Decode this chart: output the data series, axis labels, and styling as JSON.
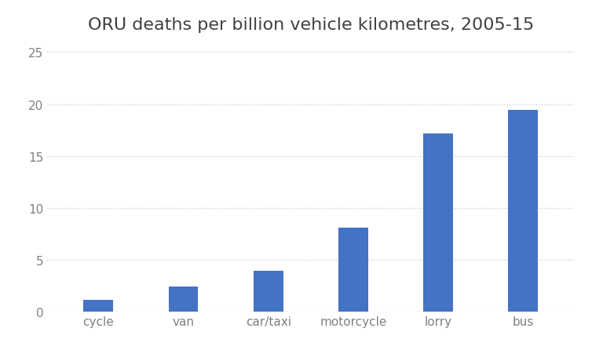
{
  "title": "ORU deaths per billion vehicle kilometres, 2005-15",
  "categories": [
    "cycle",
    "van",
    "car/taxi",
    "motorcycle",
    "lorry",
    "bus"
  ],
  "values": [
    1.1,
    2.4,
    3.9,
    8.1,
    17.2,
    19.4
  ],
  "bar_color": "#4472C4",
  "ylim": [
    0,
    26
  ],
  "yticks": [
    0,
    5,
    10,
    15,
    20,
    25
  ],
  "background_color": "#ffffff",
  "title_fontsize": 16,
  "tick_label_fontsize": 11,
  "grid_color": "#cccccc",
  "grid_linestyle": ":",
  "grid_linewidth": 1.0,
  "bar_width": 0.35,
  "title_color": "#404040",
  "tick_color": "#808080"
}
